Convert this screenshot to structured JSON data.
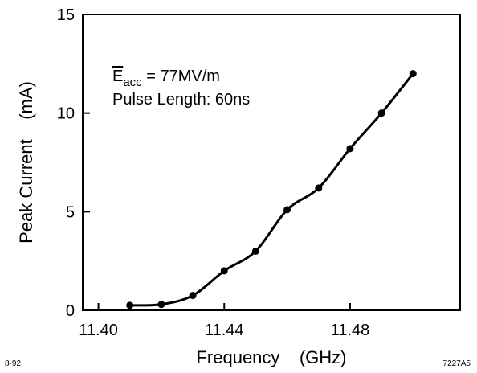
{
  "chart_data": {
    "type": "line",
    "xlabel": "Frequency    (GHz)",
    "ylabel": "Peak Current    (mA)",
    "xlim": [
      11.395,
      11.515
    ],
    "ylim": [
      0,
      15
    ],
    "x_ticks": [
      11.4,
      11.44,
      11.48
    ],
    "x_tick_labels": [
      "11.40",
      "11.44",
      "11.48"
    ],
    "y_ticks": [
      0,
      5,
      10,
      15
    ],
    "y_tick_labels": [
      "0",
      "5",
      "10",
      "15"
    ],
    "grid": false,
    "series": [
      {
        "x": [
          11.41,
          11.42,
          11.43,
          11.44,
          11.45,
          11.46,
          11.47,
          11.48,
          11.49,
          11.5
        ],
        "y": [
          0.25,
          0.3,
          0.75,
          2.0,
          3.0,
          5.1,
          6.2,
          8.2,
          10.0,
          12.0
        ]
      }
    ],
    "annotations": {
      "e_symbol": "E",
      "e_subscript": "acc",
      "e_value": " = 77MV/m",
      "pulse": "Pulse Length: 60ns"
    }
  },
  "footer": {
    "left": "8-92",
    "right": "7227A5"
  }
}
